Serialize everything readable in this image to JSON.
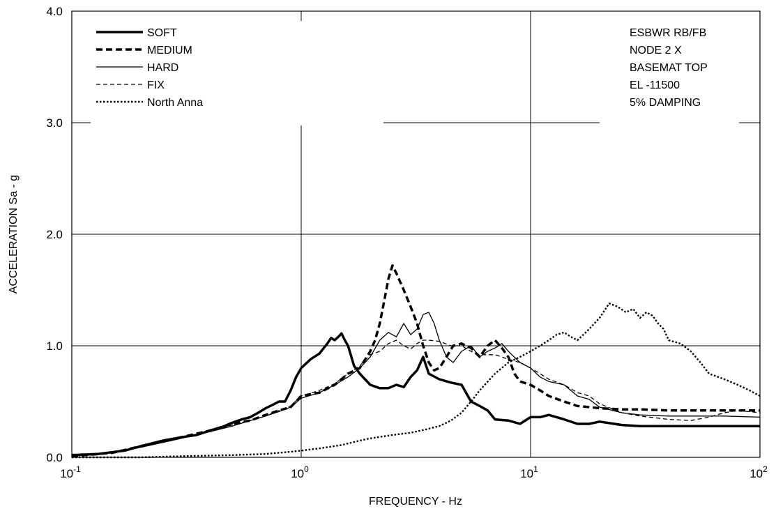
{
  "chart_data": {
    "type": "line",
    "xscale": "log",
    "xlim": [
      0.1,
      100
    ],
    "ylim": [
      0.0,
      4.0
    ],
    "xlabel": "FREQUENCY - Hz",
    "ylabel": "ACCELERATION Sa - g",
    "grid": true,
    "legend_position": "top-left",
    "x_ticks": [
      {
        "base": "10",
        "exp": "-1",
        "value": 0.1
      },
      {
        "base": "10",
        "exp": "0",
        "value": 1
      },
      {
        "base": "10",
        "exp": "1",
        "value": 10
      },
      {
        "base": "10",
        "exp": "2",
        "value": 100
      }
    ],
    "y_ticks": [
      {
        "label": "0.0",
        "value": 0
      },
      {
        "label": "1.0",
        "value": 1
      },
      {
        "label": "2.0",
        "value": 2
      },
      {
        "label": "3.0",
        "value": 3
      },
      {
        "label": "4.0",
        "value": 4
      }
    ],
    "annotations": [
      "ESBWR RB/FB",
      "NODE 2 X",
      "BASEMAT TOP",
      "EL -11500",
      "5% DAMPING"
    ],
    "series": [
      {
        "name": "SOFT",
        "style": "thick-solid",
        "points": [
          [
            0.1,
            0.02
          ],
          [
            0.13,
            0.03
          ],
          [
            0.17,
            0.06
          ],
          [
            0.2,
            0.1
          ],
          [
            0.25,
            0.15
          ],
          [
            0.3,
            0.18
          ],
          [
            0.35,
            0.2
          ],
          [
            0.4,
            0.24
          ],
          [
            0.45,
            0.27
          ],
          [
            0.5,
            0.31
          ],
          [
            0.55,
            0.34
          ],
          [
            0.6,
            0.36
          ],
          [
            0.65,
            0.4
          ],
          [
            0.7,
            0.44
          ],
          [
            0.75,
            0.47
          ],
          [
            0.8,
            0.5
          ],
          [
            0.85,
            0.5
          ],
          [
            0.9,
            0.6
          ],
          [
            0.95,
            0.72
          ],
          [
            1.0,
            0.8
          ],
          [
            1.1,
            0.88
          ],
          [
            1.2,
            0.93
          ],
          [
            1.3,
            1.02
          ],
          [
            1.35,
            1.07
          ],
          [
            1.4,
            1.05
          ],
          [
            1.45,
            1.08
          ],
          [
            1.5,
            1.11
          ],
          [
            1.55,
            1.05
          ],
          [
            1.6,
            1.0
          ],
          [
            1.7,
            0.82
          ],
          [
            1.8,
            0.75
          ],
          [
            2.0,
            0.65
          ],
          [
            2.2,
            0.62
          ],
          [
            2.4,
            0.62
          ],
          [
            2.6,
            0.65
          ],
          [
            2.8,
            0.63
          ],
          [
            3.0,
            0.72
          ],
          [
            3.2,
            0.78
          ],
          [
            3.4,
            0.9
          ],
          [
            3.6,
            0.75
          ],
          [
            4.0,
            0.7
          ],
          [
            4.5,
            0.67
          ],
          [
            5.0,
            0.65
          ],
          [
            5.5,
            0.5
          ],
          [
            6.0,
            0.46
          ],
          [
            6.5,
            0.42
          ],
          [
            7.0,
            0.34
          ],
          [
            8.0,
            0.33
          ],
          [
            9.0,
            0.3
          ],
          [
            10,
            0.36
          ],
          [
            11,
            0.36
          ],
          [
            12,
            0.38
          ],
          [
            14,
            0.34
          ],
          [
            16,
            0.3
          ],
          [
            18,
            0.3
          ],
          [
            20,
            0.32
          ],
          [
            25,
            0.29
          ],
          [
            30,
            0.28
          ],
          [
            40,
            0.28
          ],
          [
            50,
            0.28
          ],
          [
            70,
            0.28
          ],
          [
            100,
            0.28
          ]
        ]
      },
      {
        "name": "MEDIUM",
        "style": "thick-dashed",
        "points": [
          [
            0.1,
            0.01
          ],
          [
            0.15,
            0.04
          ],
          [
            0.2,
            0.1
          ],
          [
            0.3,
            0.18
          ],
          [
            0.4,
            0.24
          ],
          [
            0.5,
            0.3
          ],
          [
            0.6,
            0.33
          ],
          [
            0.7,
            0.38
          ],
          [
            0.8,
            0.42
          ],
          [
            0.9,
            0.45
          ],
          [
            1.0,
            0.55
          ],
          [
            1.2,
            0.58
          ],
          [
            1.4,
            0.65
          ],
          [
            1.6,
            0.75
          ],
          [
            1.8,
            0.8
          ],
          [
            2.0,
            0.95
          ],
          [
            2.1,
            1.05
          ],
          [
            2.2,
            1.2
          ],
          [
            2.3,
            1.4
          ],
          [
            2.4,
            1.6
          ],
          [
            2.5,
            1.72
          ],
          [
            2.6,
            1.65
          ],
          [
            2.8,
            1.5
          ],
          [
            3.0,
            1.35
          ],
          [
            3.2,
            1.2
          ],
          [
            3.4,
            1.0
          ],
          [
            3.6,
            0.85
          ],
          [
            3.8,
            0.78
          ],
          [
            4.0,
            0.8
          ],
          [
            4.3,
            0.9
          ],
          [
            4.6,
            1.0
          ],
          [
            5.0,
            1.02
          ],
          [
            5.5,
            0.98
          ],
          [
            6.0,
            0.9
          ],
          [
            6.5,
            1.0
          ],
          [
            7.0,
            1.05
          ],
          [
            7.5,
            0.98
          ],
          [
            8.0,
            0.9
          ],
          [
            8.5,
            0.75
          ],
          [
            9.0,
            0.68
          ],
          [
            10,
            0.65
          ],
          [
            11,
            0.6
          ],
          [
            12,
            0.55
          ],
          [
            14,
            0.5
          ],
          [
            16,
            0.46
          ],
          [
            18,
            0.45
          ],
          [
            20,
            0.44
          ],
          [
            25,
            0.43
          ],
          [
            30,
            0.43
          ],
          [
            40,
            0.42
          ],
          [
            50,
            0.42
          ],
          [
            70,
            0.42
          ],
          [
            100,
            0.42
          ]
        ]
      },
      {
        "name": "HARD",
        "style": "thin-solid",
        "points": [
          [
            0.1,
            0.01
          ],
          [
            0.15,
            0.04
          ],
          [
            0.2,
            0.09
          ],
          [
            0.3,
            0.17
          ],
          [
            0.4,
            0.23
          ],
          [
            0.5,
            0.28
          ],
          [
            0.6,
            0.33
          ],
          [
            0.7,
            0.37
          ],
          [
            0.8,
            0.41
          ],
          [
            0.9,
            0.45
          ],
          [
            1.0,
            0.53
          ],
          [
            1.2,
            0.58
          ],
          [
            1.4,
            0.65
          ],
          [
            1.6,
            0.72
          ],
          [
            1.8,
            0.8
          ],
          [
            2.0,
            0.9
          ],
          [
            2.2,
            1.05
          ],
          [
            2.4,
            1.12
          ],
          [
            2.6,
            1.08
          ],
          [
            2.8,
            1.2
          ],
          [
            3.0,
            1.1
          ],
          [
            3.2,
            1.15
          ],
          [
            3.4,
            1.28
          ],
          [
            3.6,
            1.3
          ],
          [
            3.8,
            1.2
          ],
          [
            4.0,
            1.05
          ],
          [
            4.3,
            0.9
          ],
          [
            4.6,
            0.85
          ],
          [
            5.0,
            0.95
          ],
          [
            5.5,
            1.0
          ],
          [
            6.0,
            0.9
          ],
          [
            6.5,
            0.95
          ],
          [
            7.0,
            0.98
          ],
          [
            7.5,
            1.02
          ],
          [
            8.0,
            0.95
          ],
          [
            9.0,
            0.85
          ],
          [
            10,
            0.8
          ],
          [
            11,
            0.72
          ],
          [
            12,
            0.68
          ],
          [
            14,
            0.65
          ],
          [
            16,
            0.55
          ],
          [
            18,
            0.52
          ],
          [
            20,
            0.45
          ],
          [
            25,
            0.4
          ],
          [
            30,
            0.38
          ],
          [
            40,
            0.37
          ],
          [
            50,
            0.37
          ],
          [
            70,
            0.37
          ],
          [
            100,
            0.36
          ]
        ]
      },
      {
        "name": "FIX",
        "style": "thin-dashed",
        "points": [
          [
            0.1,
            0.01
          ],
          [
            0.15,
            0.04
          ],
          [
            0.2,
            0.09
          ],
          [
            0.3,
            0.17
          ],
          [
            0.4,
            0.23
          ],
          [
            0.5,
            0.29
          ],
          [
            0.6,
            0.33
          ],
          [
            0.7,
            0.37
          ],
          [
            0.8,
            0.42
          ],
          [
            0.9,
            0.46
          ],
          [
            1.0,
            0.55
          ],
          [
            1.2,
            0.6
          ],
          [
            1.4,
            0.66
          ],
          [
            1.6,
            0.75
          ],
          [
            1.8,
            0.82
          ],
          [
            2.0,
            0.92
          ],
          [
            2.2,
            0.95
          ],
          [
            2.4,
            1.02
          ],
          [
            2.6,
            1.05
          ],
          [
            2.8,
            1.0
          ],
          [
            3.0,
            0.97
          ],
          [
            3.2,
            1.02
          ],
          [
            3.4,
            1.05
          ],
          [
            3.6,
            1.05
          ],
          [
            4.0,
            1.04
          ],
          [
            4.5,
            1.0
          ],
          [
            5.0,
            1.0
          ],
          [
            5.5,
            0.95
          ],
          [
            6.0,
            0.92
          ],
          [
            7.0,
            0.92
          ],
          [
            8.0,
            0.88
          ],
          [
            9.0,
            0.85
          ],
          [
            10,
            0.8
          ],
          [
            11,
            0.75
          ],
          [
            12,
            0.7
          ],
          [
            14,
            0.65
          ],
          [
            16,
            0.58
          ],
          [
            18,
            0.55
          ],
          [
            20,
            0.48
          ],
          [
            25,
            0.4
          ],
          [
            30,
            0.37
          ],
          [
            40,
            0.34
          ],
          [
            50,
            0.33
          ],
          [
            60,
            0.36
          ],
          [
            70,
            0.4
          ],
          [
            80,
            0.42
          ],
          [
            100,
            0.4
          ]
        ]
      },
      {
        "name": "North Anna",
        "style": "dotted",
        "points": [
          [
            0.1,
            0.0
          ],
          [
            0.2,
            0.0
          ],
          [
            0.3,
            0.01
          ],
          [
            0.5,
            0.02
          ],
          [
            0.7,
            0.03
          ],
          [
            0.9,
            0.05
          ],
          [
            1.0,
            0.06
          ],
          [
            1.2,
            0.08
          ],
          [
            1.5,
            0.11
          ],
          [
            1.8,
            0.15
          ],
          [
            2.0,
            0.17
          ],
          [
            2.5,
            0.2
          ],
          [
            3.0,
            0.22
          ],
          [
            3.5,
            0.25
          ],
          [
            4.0,
            0.28
          ],
          [
            4.5,
            0.33
          ],
          [
            5.0,
            0.4
          ],
          [
            5.5,
            0.5
          ],
          [
            6.0,
            0.6
          ],
          [
            7.0,
            0.75
          ],
          [
            8.0,
            0.85
          ],
          [
            9.0,
            0.9
          ],
          [
            10,
            0.95
          ],
          [
            11,
            1.0
          ],
          [
            12,
            1.05
          ],
          [
            13,
            1.1
          ],
          [
            14,
            1.12
          ],
          [
            15,
            1.08
          ],
          [
            16,
            1.05
          ],
          [
            17,
            1.1
          ],
          [
            18,
            1.15
          ],
          [
            20,
            1.25
          ],
          [
            22,
            1.38
          ],
          [
            24,
            1.35
          ],
          [
            26,
            1.3
          ],
          [
            28,
            1.33
          ],
          [
            30,
            1.25
          ],
          [
            32,
            1.3
          ],
          [
            34,
            1.27
          ],
          [
            36,
            1.2
          ],
          [
            38,
            1.15
          ],
          [
            40,
            1.05
          ],
          [
            45,
            1.02
          ],
          [
            50,
            0.95
          ],
          [
            55,
            0.85
          ],
          [
            60,
            0.75
          ],
          [
            70,
            0.7
          ],
          [
            80,
            0.65
          ],
          [
            90,
            0.6
          ],
          [
            100,
            0.55
          ]
        ]
      }
    ]
  }
}
